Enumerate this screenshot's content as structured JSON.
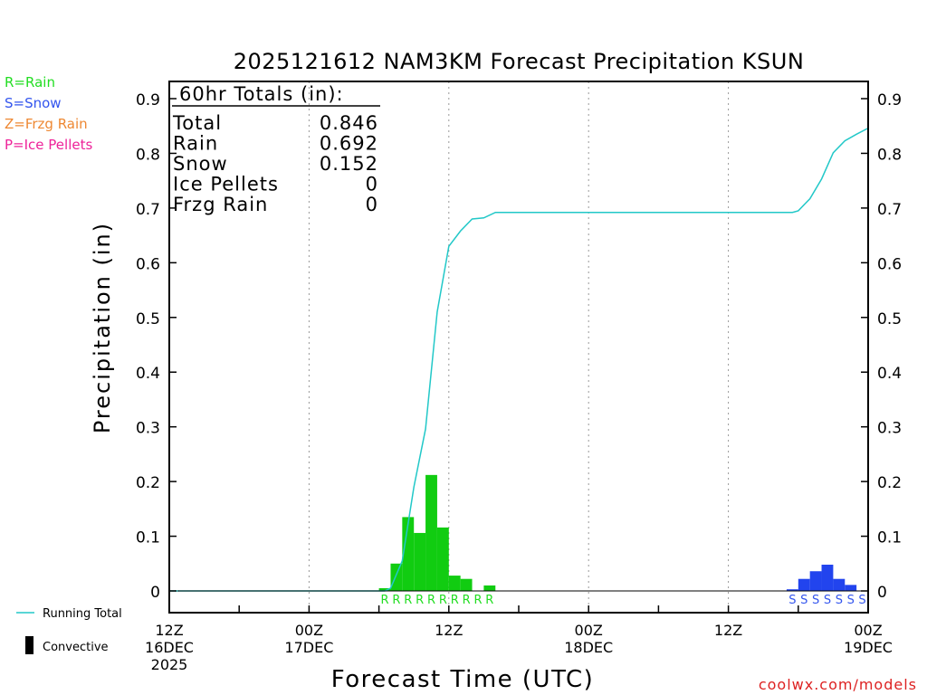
{
  "chart_data": {
    "type": "bar",
    "title": "2025121612 NAM3KM Forecast Precipitation KSUN",
    "xlabel": "Forecast Time (UTC)",
    "ylabel": "Precipitation (in)",
    "x_unit": "forecast hour",
    "xlim": [
      0,
      60
    ],
    "ylim": [
      0,
      0.93
    ],
    "y_ticks": [
      0,
      0.1,
      0.2,
      0.3,
      0.4,
      0.5,
      0.6,
      0.7,
      0.8,
      0.9
    ],
    "y_tick_labels": [
      "0",
      "0.1",
      "0.2",
      "0.3",
      "0.4",
      "0.5",
      "0.6",
      "0.7",
      "0.8",
      "0.9"
    ],
    "x_ticks": [
      {
        "hour": 0,
        "lines": [
          "12Z",
          "16DEC",
          "2025"
        ]
      },
      {
        "hour": 12,
        "lines": [
          "00Z",
          "17DEC"
        ]
      },
      {
        "hour": 24,
        "lines": [
          "12Z"
        ]
      },
      {
        "hour": 36,
        "lines": [
          "00Z",
          "18DEC"
        ]
      },
      {
        "hour": 48,
        "lines": [
          "12Z"
        ]
      },
      {
        "hour": 60,
        "lines": [
          "00Z",
          "19DEC"
        ]
      }
    ],
    "grid": "vertical dotted",
    "type_legend": [
      {
        "code": "R",
        "label": "R=Rain",
        "color": "#22dd22"
      },
      {
        "code": "S",
        "label": "S=Snow",
        "color": "#3355ee"
      },
      {
        "code": "Z",
        "label": "Z=Frzg Rain",
        "color": "#ee8833"
      },
      {
        "code": "P",
        "label": "P=Ice Pellets",
        "color": "#ee2299"
      }
    ],
    "line_legend": [
      {
        "label": "Running Total",
        "color": "#22c8c8"
      },
      {
        "label": "Convective",
        "color": "#000000"
      }
    ],
    "totals": {
      "header": "60hr Totals (in):",
      "rows": [
        {
          "label": "Total",
          "value": "0.846"
        },
        {
          "label": "Rain",
          "value": "0.692"
        },
        {
          "label": "Snow",
          "value": "0.152"
        },
        {
          "label": "Ice Pellets",
          "value": "0"
        },
        {
          "label": "Frzg Rain",
          "value": "0"
        }
      ]
    },
    "series": [
      {
        "type": "bar",
        "color": "#11cc11",
        "bars": [
          {
            "hour": 19,
            "value": 0.005
          },
          {
            "hour": 20,
            "value": 0.05
          },
          {
            "hour": 21,
            "value": 0.135
          },
          {
            "hour": 22,
            "value": 0.106
          },
          {
            "hour": 23,
            "value": 0.212
          },
          {
            "hour": 24,
            "value": 0.116
          },
          {
            "hour": 25,
            "value": 0.028
          },
          {
            "hour": 26,
            "value": 0.022
          },
          {
            "hour": 28,
            "value": 0.01
          }
        ]
      },
      {
        "type": "bar",
        "color": "#2244ee",
        "bars": [
          {
            "hour": 54,
            "value": 0.003
          },
          {
            "hour": 55,
            "value": 0.022
          },
          {
            "hour": 56,
            "value": 0.036
          },
          {
            "hour": 57,
            "value": 0.048
          },
          {
            "hour": 58,
            "value": 0.022
          },
          {
            "hour": 59,
            "value": 0.011
          }
        ]
      },
      {
        "name": "Running Total",
        "type": "line",
        "color": "#22c8c8",
        "x": [
          0,
          18.5,
          19,
          20,
          21,
          22,
          23,
          24,
          25,
          26,
          27,
          28,
          29,
          53,
          53.5,
          54,
          55,
          56,
          57,
          58,
          59,
          60
        ],
        "y": [
          0,
          0,
          0.005,
          0.055,
          0.19,
          0.296,
          0.51,
          0.63,
          0.658,
          0.68,
          0.682,
          0.692,
          0.692,
          0.692,
          0.692,
          0.695,
          0.717,
          0.753,
          0.801,
          0.823,
          0.835,
          0.846
        ]
      }
    ],
    "type_markers": [
      {
        "code": "R",
        "color": "#22dd22",
        "hours": [
          19,
          20,
          21,
          22,
          23,
          24,
          25,
          26,
          27,
          28
        ]
      },
      {
        "code": "S",
        "color": "#3355ee",
        "hours": [
          54,
          55,
          56,
          57,
          58,
          59,
          60
        ]
      }
    ]
  },
  "footer": {
    "credit": "coolwx.com/models",
    "credit_color": "#dd2222"
  }
}
